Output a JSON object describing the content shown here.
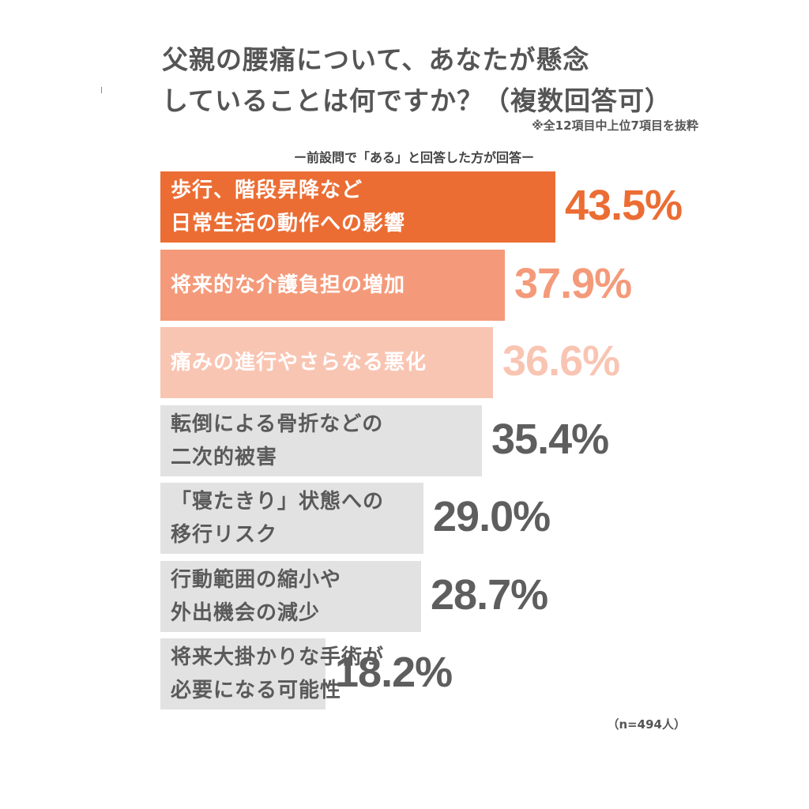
{
  "title": {
    "line1": "父親の腰痛について、あなたが懸念",
    "line2": "していることは何ですか？（複数回答可）"
  },
  "note": "※全12項目中上位7項目を抜粋",
  "subtitle": "ー前設問で「ある」と回答した方が回答ー",
  "sample_size": "（n=494人）",
  "colors": {
    "top1": "#eb6d34",
    "top2": "#f49a7a",
    "top3": "#f9c5b3",
    "rest": "#e2e2e2",
    "value_top1": "#eb6d34",
    "value_top2": "#f49a7a",
    "value_top3": "#f9c5b3",
    "value_rest": "#5e5e5e",
    "label_light": "#ffffff",
    "label_dark": "#5a5a5a"
  },
  "chart_data": {
    "type": "bar",
    "orientation": "horizontal",
    "title": "父親の腰痛について、あなたが懸念していることは何ですか？（複数回答可）",
    "unit": "%",
    "categories": [
      "歩行、階段昇降など\n日常生活の動作への影響",
      "将来的な介護負担の増加",
      "痛みの進行やさらなる悪化",
      "転倒による骨折などの\n二次的被害",
      "「寝たきり」状態への\n移行リスク",
      "行動範囲の縮小や\n外出機会の減少",
      "将来大掛かりな手術が\n必要になる可能性"
    ],
    "values": [
      43.5,
      37.9,
      36.6,
      35.4,
      29.0,
      28.7,
      18.2
    ],
    "value_labels": [
      "43.5%",
      "37.9%",
      "36.6%",
      "35.4%",
      "29.0%",
      "28.7%",
      "18.2%"
    ],
    "xlim": [
      0,
      43.5
    ],
    "grid": false,
    "legend": "none"
  }
}
